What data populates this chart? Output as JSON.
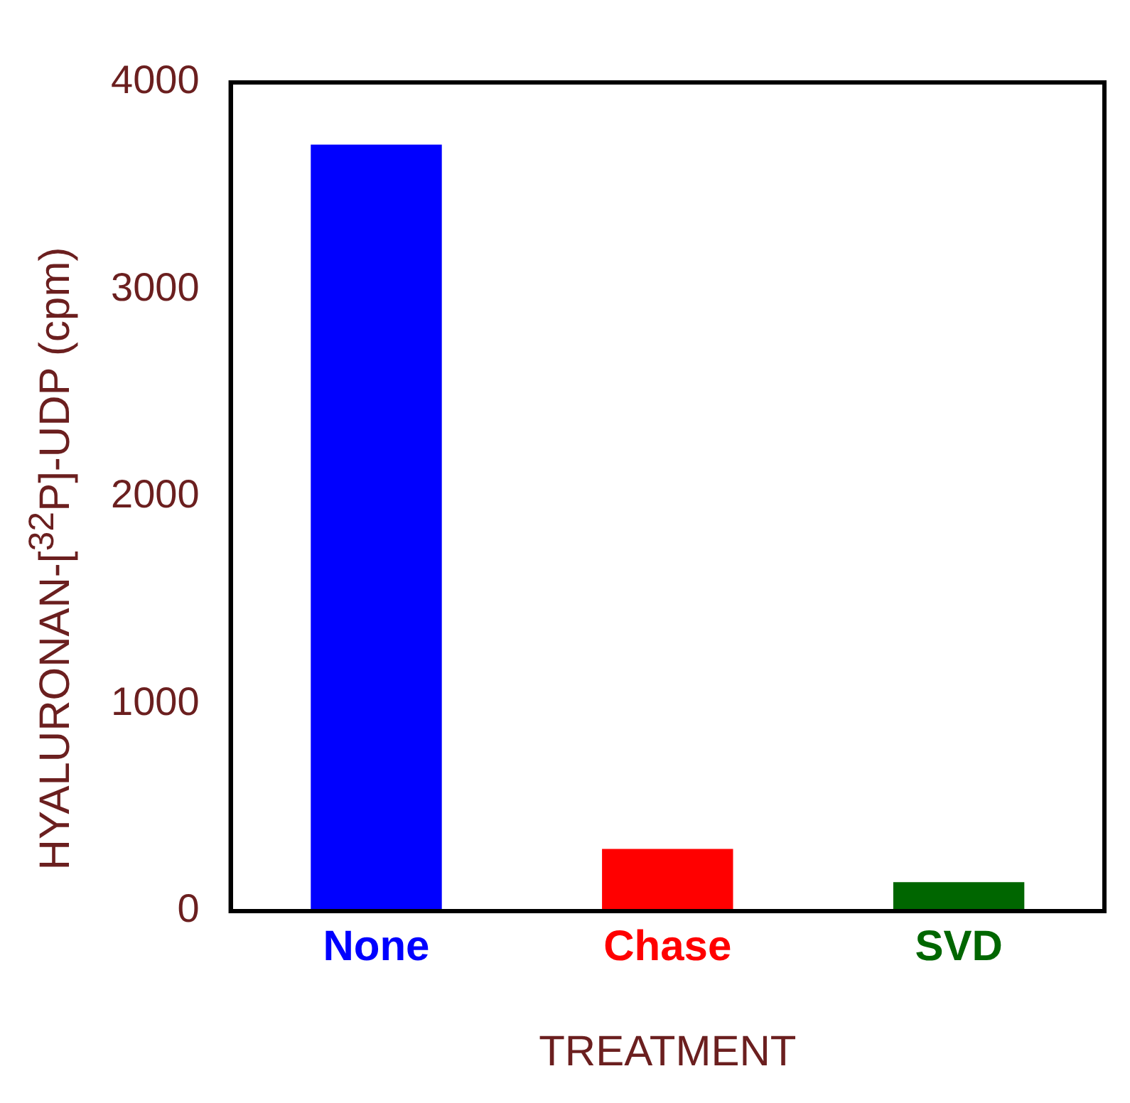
{
  "chart_data": {
    "type": "bar",
    "xlabel": "TREATMENT",
    "ylabel": "HYALURONAN-[$^{32}$P]-UDP (cpm)",
    "categories": [
      "None",
      "Chase",
      "SVD"
    ],
    "values": [
      3700,
      300,
      140
    ],
    "colors": [
      "#0000ff",
      "#ff0000",
      "#006600"
    ],
    "ylim": [
      0,
      4000
    ],
    "yticks": [
      0,
      1000,
      2000,
      3000,
      4000
    ],
    "grid": false,
    "legend": false
  }
}
